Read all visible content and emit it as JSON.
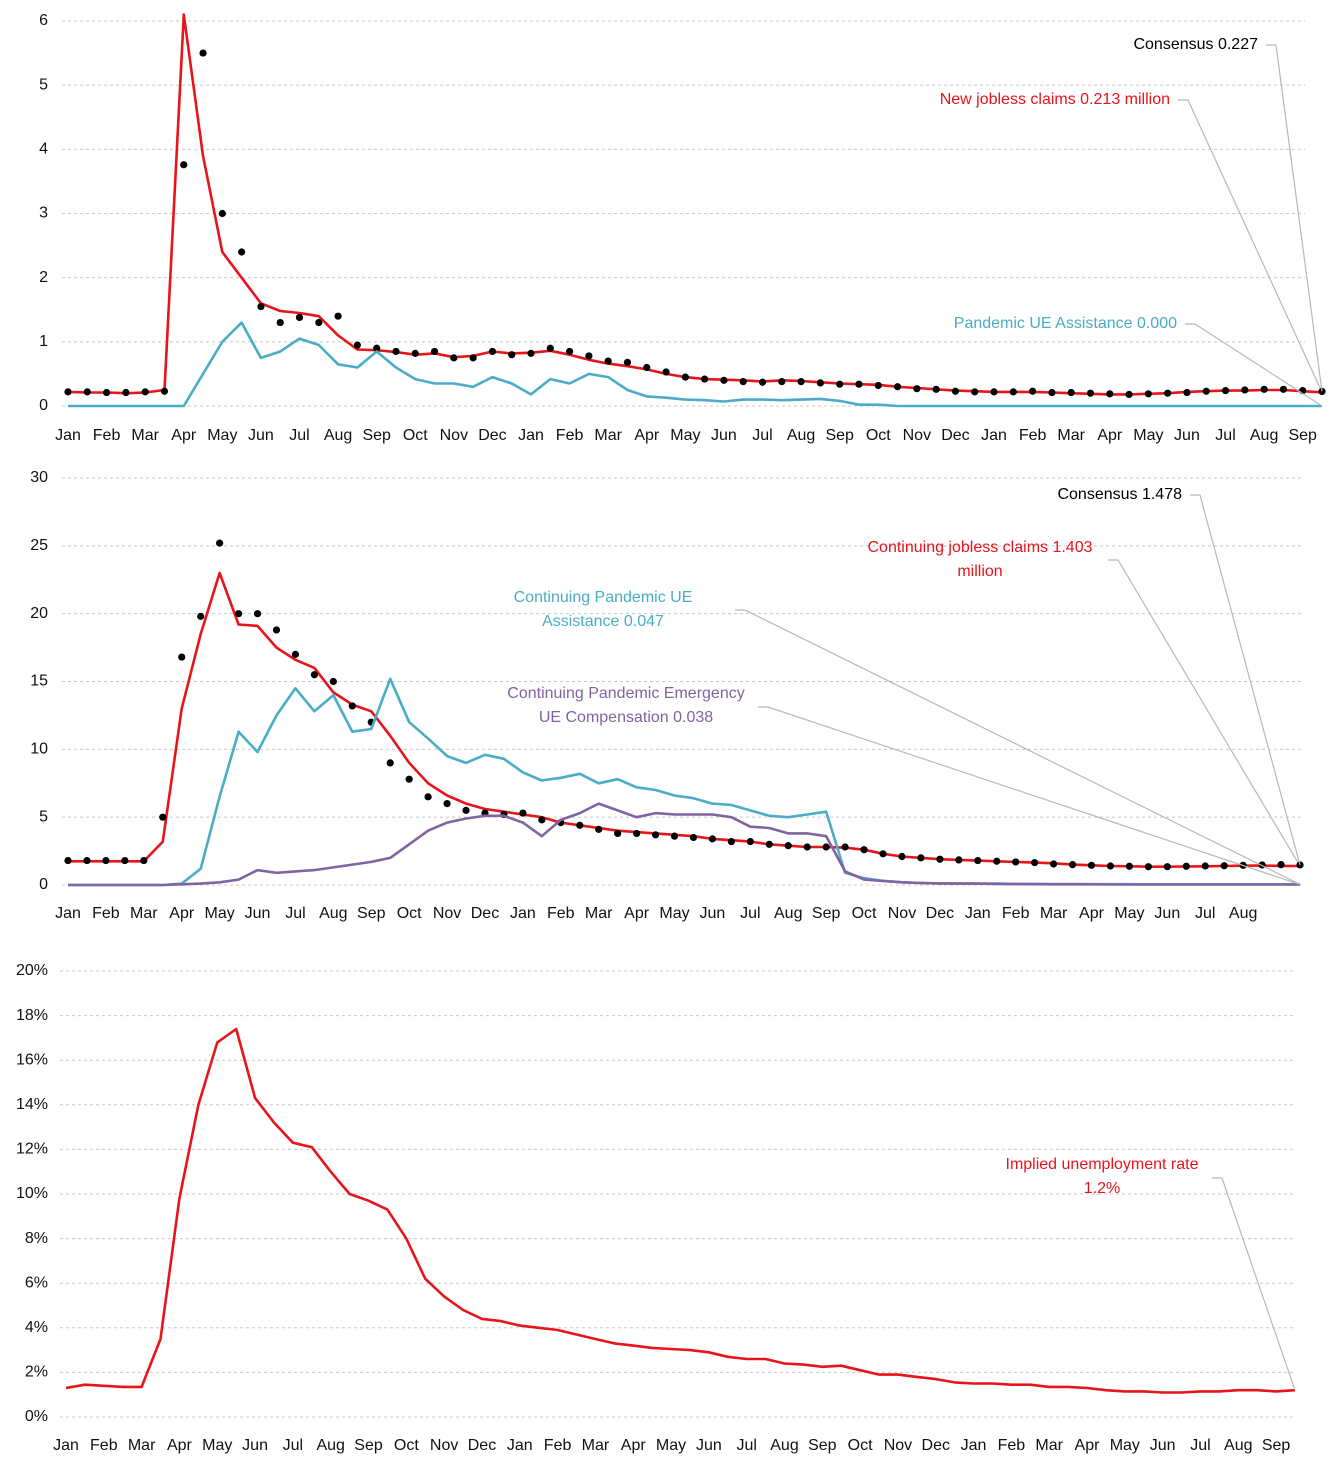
{
  "chart_data": [
    {
      "type": "line",
      "categories": [
        "Jan",
        null,
        "Feb",
        null,
        "Mar",
        null,
        "Apr",
        null,
        "May",
        null,
        "Jun",
        null,
        "Jul",
        null,
        "Aug",
        null,
        "Sep",
        null,
        "Oct",
        null,
        "Nov",
        null,
        "Dec",
        null,
        "Jan",
        null,
        "Feb",
        null,
        "Mar",
        null,
        "Apr",
        null,
        "May",
        null,
        "Jun",
        null,
        "Jul",
        null,
        "Aug",
        null,
        "Sep",
        null,
        "Oct",
        null,
        "Nov",
        null,
        "Dec",
        null,
        "Jan",
        null,
        "Feb",
        null,
        "Mar",
        null,
        "Apr",
        null,
        "May",
        null,
        "Jun",
        null,
        "Jul",
        null,
        "Aug",
        null,
        "Sep",
        null
      ],
      "ylim": [
        0,
        6
      ],
      "yticks": [
        0,
        1,
        2,
        3,
        4,
        5,
        6
      ],
      "grid": true,
      "series": [
        {
          "name": "New jobless claims 0.213 million",
          "color": "#e8141b",
          "mode": "lines",
          "values": [
            0.22,
            0.21,
            0.21,
            0.2,
            0.21,
            0.25,
            6.1,
            3.9,
            2.4,
            2.0,
            1.6,
            1.48,
            1.45,
            1.4,
            1.1,
            0.88,
            0.87,
            0.84,
            0.8,
            0.82,
            0.76,
            0.78,
            0.85,
            0.82,
            0.83,
            0.86,
            0.8,
            0.72,
            0.66,
            0.62,
            0.57,
            0.5,
            0.45,
            0.42,
            0.41,
            0.4,
            0.38,
            0.4,
            0.39,
            0.37,
            0.35,
            0.34,
            0.33,
            0.3,
            0.28,
            0.26,
            0.24,
            0.23,
            0.22,
            0.22,
            0.22,
            0.21,
            0.2,
            0.19,
            0.18,
            0.18,
            0.19,
            0.2,
            0.22,
            0.23,
            0.24,
            0.24,
            0.25,
            0.25,
            0.23,
            0.213
          ]
        },
        {
          "name": "Consensus 0.227",
          "color": "#000000",
          "mode": "markers",
          "values": [
            0.22,
            0.22,
            0.21,
            0.21,
            0.22,
            0.23,
            3.76,
            5.5,
            3.0,
            2.4,
            1.55,
            1.3,
            1.38,
            1.3,
            1.4,
            0.95,
            0.9,
            0.85,
            0.82,
            0.85,
            0.75,
            0.75,
            0.85,
            0.8,
            0.82,
            0.9,
            0.85,
            0.78,
            0.7,
            0.68,
            0.6,
            0.53,
            0.45,
            0.42,
            0.4,
            0.38,
            0.37,
            0.38,
            0.38,
            0.36,
            0.34,
            0.34,
            0.32,
            0.3,
            0.27,
            0.26,
            0.23,
            0.22,
            0.22,
            0.22,
            0.23,
            0.21,
            0.21,
            0.2,
            0.19,
            0.18,
            0.19,
            0.2,
            0.21,
            0.23,
            0.24,
            0.25,
            0.26,
            0.26,
            0.24,
            0.227
          ]
        },
        {
          "name": "Pandemic UE Assistance 0.000",
          "color": "#4bacc6",
          "mode": "lines",
          "values": [
            0,
            0,
            0,
            0,
            0,
            0,
            0,
            0.5,
            1.0,
            1.3,
            0.75,
            0.85,
            1.05,
            0.95,
            0.65,
            0.6,
            0.85,
            0.6,
            0.42,
            0.35,
            0.35,
            0.3,
            0.45,
            0.35,
            0.18,
            0.42,
            0.35,
            0.5,
            0.45,
            0.25,
            0.15,
            0.13,
            0.1,
            0.09,
            0.07,
            0.1,
            0.1,
            0.09,
            0.1,
            0.11,
            0.08,
            0.02,
            0.02,
            0,
            0,
            0,
            0,
            0,
            0,
            0,
            0,
            0,
            0,
            0,
            0,
            0,
            0,
            0,
            0,
            0,
            0,
            0,
            0,
            0,
            0,
            0
          ]
        }
      ]
    },
    {
      "type": "line",
      "categories": [
        "Jan",
        null,
        "Feb",
        null,
        "Mar",
        null,
        "Apr",
        null,
        "May",
        null,
        "Jun",
        null,
        "Jul",
        null,
        "Aug",
        null,
        "Sep",
        null,
        "Oct",
        null,
        "Nov",
        null,
        "Dec",
        null,
        "Jan",
        null,
        "Feb",
        null,
        "Mar",
        null,
        "Apr",
        null,
        "May",
        null,
        "Jun",
        null,
        "Jul",
        null,
        "Aug",
        null,
        "Sep",
        null,
        "Oct",
        null,
        "Nov",
        null,
        "Dec",
        null,
        "Jan",
        null,
        "Feb",
        null,
        "Mar",
        null,
        "Apr",
        null,
        "May",
        null,
        "Jun",
        null,
        "Jul",
        null,
        "Aug",
        null,
        null,
        null
      ],
      "ylim": [
        0,
        30
      ],
      "yticks": [
        0,
        5,
        10,
        15,
        20,
        25,
        30
      ],
      "grid": true,
      "series": [
        {
          "name": "Continuing jobless claims 1.403 million",
          "color": "#e8141b",
          "mode": "lines",
          "values": [
            1.75,
            1.75,
            1.75,
            1.75,
            1.75,
            3.2,
            13,
            18.5,
            23,
            19.2,
            19.1,
            17.5,
            16.6,
            16,
            14.2,
            13.3,
            12.8,
            11,
            9,
            7.5,
            6.6,
            6,
            5.6,
            5.4,
            5.2,
            5,
            4.6,
            4.4,
            4.2,
            4.0,
            3.9,
            3.8,
            3.7,
            3.6,
            3.4,
            3.3,
            3.2,
            3.0,
            2.9,
            2.8,
            2.8,
            2.75,
            2.6,
            2.3,
            2.1,
            2.0,
            1.9,
            1.85,
            1.8,
            1.75,
            1.7,
            1.65,
            1.6,
            1.5,
            1.45,
            1.4,
            1.38,
            1.35,
            1.35,
            1.36,
            1.38,
            1.4,
            1.42,
            1.43,
            1.41,
            1.403
          ]
        },
        {
          "name": "Consensus 1.478",
          "color": "#000000",
          "mode": "markers",
          "values": [
            1.8,
            1.8,
            1.8,
            1.8,
            1.8,
            5,
            16.8,
            19.8,
            25.2,
            20,
            20,
            18.8,
            17,
            15.5,
            15,
            13.2,
            12,
            9,
            7.8,
            6.5,
            6,
            5.5,
            5.3,
            5.2,
            5.3,
            4.8,
            4.6,
            4.4,
            4.1,
            3.8,
            3.8,
            3.7,
            3.6,
            3.5,
            3.4,
            3.2,
            3.2,
            3.0,
            2.9,
            2.8,
            2.8,
            2.8,
            2.6,
            2.3,
            2.1,
            2.0,
            1.9,
            1.85,
            1.8,
            1.75,
            1.7,
            1.65,
            1.55,
            1.5,
            1.45,
            1.4,
            1.38,
            1.35,
            1.35,
            1.38,
            1.4,
            1.42,
            1.45,
            1.48,
            1.5,
            1.478
          ]
        },
        {
          "name": "Continuing Pandemic UE Assistance 0.047",
          "color": "#4bacc6",
          "mode": "lines",
          "values": [
            0,
            0,
            0,
            0,
            0,
            0,
            0.1,
            1.2,
            6.5,
            11.3,
            9.8,
            12.5,
            14.5,
            12.8,
            14,
            11.3,
            11.5,
            15.2,
            12,
            10.8,
            9.5,
            9,
            9.6,
            9.3,
            8.3,
            7.7,
            7.9,
            8.2,
            7.5,
            7.8,
            7.2,
            7,
            6.6,
            6.4,
            6,
            5.9,
            5.5,
            5.1,
            5,
            5.2,
            5.4,
            0.9,
            0.5,
            0.3,
            0.2,
            0.15,
            0.12,
            0.1,
            0.1,
            0.1,
            0.08,
            0.08,
            0.07,
            0.07,
            0.06,
            0.06,
            0.06,
            0.05,
            0.05,
            0.05,
            0.05,
            0.05,
            0.05,
            0.05,
            0.05,
            0.047
          ]
        },
        {
          "name": "Continuing Pandemic Emergency UE Compensation 0.038",
          "color": "#8064a2",
          "mode": "lines",
          "values": [
            0,
            0,
            0,
            0,
            0,
            0,
            0.05,
            0.1,
            0.2,
            0.4,
            1.1,
            0.9,
            1.0,
            1.1,
            1.3,
            1.5,
            1.7,
            2.0,
            3.0,
            4.0,
            4.6,
            4.9,
            5.1,
            5.1,
            4.6,
            3.6,
            4.8,
            5.3,
            6.0,
            5.5,
            5.0,
            5.3,
            5.2,
            5.2,
            5.2,
            5.0,
            4.3,
            4.2,
            3.8,
            3.8,
            3.6,
            1.0,
            0.4,
            0.3,
            0.2,
            0.15,
            0.12,
            0.1,
            0.1,
            0.08,
            0.07,
            0.06,
            0.05,
            0.05,
            0.05,
            0.04,
            0.04,
            0.04,
            0.04,
            0.04,
            0.04,
            0.04,
            0.04,
            0.04,
            0.04,
            0.038
          ]
        }
      ]
    },
    {
      "type": "line",
      "categories": [
        "Jan",
        null,
        "Feb",
        null,
        "Mar",
        null,
        "Apr",
        null,
        "May",
        null,
        "Jun",
        null,
        "Jul",
        null,
        "Aug",
        null,
        "Sep",
        null,
        "Oct",
        null,
        "Nov",
        null,
        "Dec",
        null,
        "Jan",
        null,
        "Feb",
        null,
        "Mar",
        null,
        "Apr",
        null,
        "May",
        null,
        "Jun",
        null,
        "Jul",
        null,
        "Aug",
        null,
        "Sep",
        null,
        "Oct",
        null,
        "Nov",
        null,
        "Dec",
        null,
        "Jan",
        null,
        "Feb",
        null,
        "Mar",
        null,
        "Apr",
        null,
        "May",
        null,
        "Jun",
        null,
        "Jul",
        null,
        "Aug",
        null,
        "Sep",
        null
      ],
      "ylim": [
        0,
        20
      ],
      "yticks": [
        {
          "value": 0,
          "label": "0%"
        },
        {
          "value": 2,
          "label": "2%"
        },
        {
          "value": 4,
          "label": "4%"
        },
        {
          "value": 6,
          "label": "6%"
        },
        {
          "value": 8,
          "label": "8%"
        },
        {
          "value": 10,
          "label": "10%"
        },
        {
          "value": 12,
          "label": "12%"
        },
        {
          "value": 14,
          "label": "14%"
        },
        {
          "value": 16,
          "label": "16%"
        },
        {
          "value": 18,
          "label": "18%"
        },
        {
          "value": 20,
          "label": "20%"
        }
      ],
      "grid": true,
      "series": [
        {
          "name": "Implied unemployment rate 1.2%",
          "color": "#e8141b",
          "mode": "lines",
          "values": [
            1.3,
            1.45,
            1.4,
            1.35,
            1.35,
            3.5,
            9.8,
            14,
            16.8,
            17.4,
            14.3,
            13.2,
            12.3,
            12.1,
            11,
            10,
            9.7,
            9.3,
            8,
            6.2,
            5.4,
            4.8,
            4.4,
            4.3,
            4.1,
            4.0,
            3.9,
            3.7,
            3.5,
            3.3,
            3.2,
            3.1,
            3.05,
            3.0,
            2.9,
            2.7,
            2.6,
            2.6,
            2.4,
            2.35,
            2.25,
            2.3,
            2.1,
            1.9,
            1.9,
            1.8,
            1.7,
            1.55,
            1.5,
            1.5,
            1.45,
            1.45,
            1.35,
            1.35,
            1.3,
            1.2,
            1.15,
            1.15,
            1.1,
            1.1,
            1.15,
            1.15,
            1.2,
            1.2,
            1.15,
            1.2
          ]
        }
      ]
    }
  ]
}
